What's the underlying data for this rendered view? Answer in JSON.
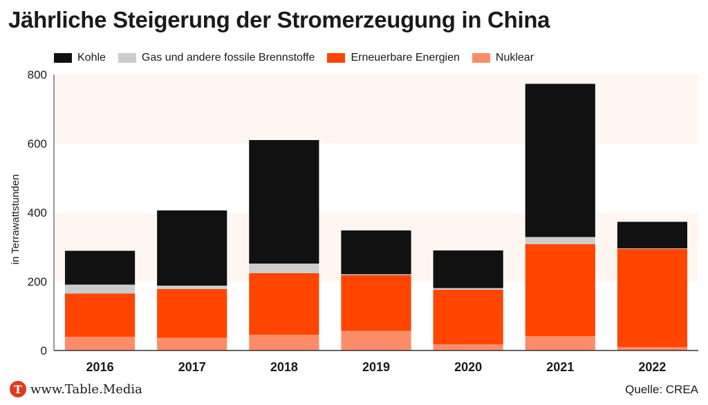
{
  "chart_data": {
    "type": "bar",
    "stacked": true,
    "title": "Jährliche Steigerung der Stromerzeugung in China",
    "ylabel": "in Terrawattstunden",
    "xlabel": "",
    "ylim": [
      0,
      800
    ],
    "yticks": [
      0,
      200,
      400,
      600,
      800
    ],
    "categories": [
      "2016",
      "2017",
      "2018",
      "2019",
      "2020",
      "2021",
      "2022"
    ],
    "series": [
      {
        "name": "Nuklear",
        "color": "#ff8c69",
        "values": [
          40,
          37,
          46,
          57,
          18,
          42,
          10
        ]
      },
      {
        "name": "Erneuerbare Energien",
        "color": "#ff4500",
        "values": [
          125,
          141,
          178,
          161,
          158,
          266,
          284
        ]
      },
      {
        "name": "Gas und andere fossile Brennstoffe",
        "color": "#cccccc",
        "values": [
          26,
          10,
          28,
          3,
          5,
          21,
          2
        ]
      },
      {
        "name": "Kohle",
        "color": "#111111",
        "values": [
          98,
          218,
          358,
          127,
          109,
          444,
          77
        ]
      }
    ],
    "legend": [
      {
        "name": "Kohle",
        "color": "#111111"
      },
      {
        "name": "Gas und andere fossile Brennstoffe",
        "color": "#cccccc"
      },
      {
        "name": "Erneuerbare Energien",
        "color": "#ff4500"
      },
      {
        "name": "Nuklear",
        "color": "#ff8c69"
      }
    ],
    "band_color": "#fff6f1",
    "grid_color": "#ffffff"
  },
  "footer": {
    "brand_initial": "T",
    "brand": "www.Table.Media",
    "source": "Quelle: CREA"
  }
}
